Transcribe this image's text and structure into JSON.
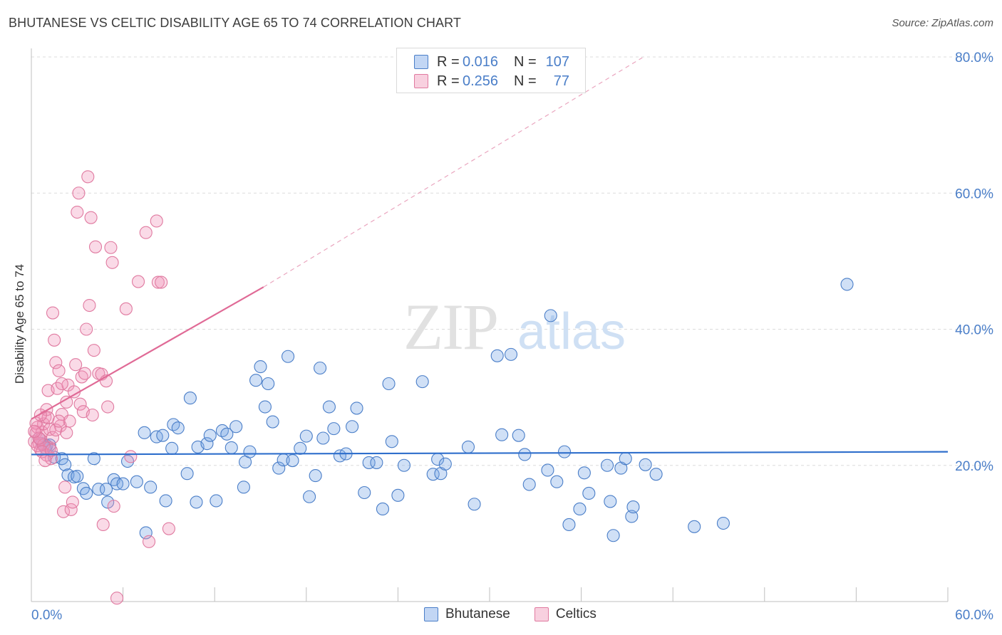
{
  "chart_data": {
    "type": "scatter",
    "title": "BHUTANESE VS CELTIC DISABILITY AGE 65 TO 74 CORRELATION CHART",
    "source": "Source: ZipAtlas.com",
    "xlabel": "",
    "ylabel": "Disability Age 65 to 74",
    "xlim": [
      0,
      60
    ],
    "ylim": [
      0,
      80
    ],
    "x_tick_labels": [
      "0.0%",
      "60.0%"
    ],
    "y_tick_labels": [
      "20.0%",
      "40.0%",
      "60.0%",
      "80.0%"
    ],
    "y_tick_values": [
      20,
      40,
      60,
      80
    ],
    "watermark": {
      "zip": "ZIP",
      "atlas": "atlas"
    },
    "legend": {
      "entries": [
        {
          "r_label": "R =",
          "r_value": "0.016",
          "n_label": "N =",
          "n_value": "107"
        },
        {
          "r_label": "R =",
          "r_value": "0.256",
          "n_label": "N =",
          "n_value": "77"
        }
      ]
    },
    "series": [
      {
        "name": "Bhutanese",
        "color": "#4a7ec8",
        "fill": "rgba(120,165,230,0.35)",
        "trend": {
          "x0": 0,
          "y0": 21.6,
          "x1": 60,
          "y1": 22.0
        },
        "points": [
          [
            0.5,
            24.0
          ],
          [
            0.7,
            23.2
          ],
          [
            1.0,
            22.9
          ],
          [
            1.5,
            21.2
          ],
          [
            2.0,
            21.0
          ],
          [
            2.2,
            20.1
          ],
          [
            2.4,
            18.6
          ],
          [
            2.8,
            18.3
          ],
          [
            3.0,
            18.4
          ],
          [
            3.4,
            16.6
          ],
          [
            3.6,
            15.9
          ],
          [
            4.1,
            21.0
          ],
          [
            4.4,
            16.5
          ],
          [
            4.9,
            16.5
          ],
          [
            5.0,
            14.6
          ],
          [
            5.4,
            17.9
          ],
          [
            5.6,
            17.3
          ],
          [
            6.0,
            17.3
          ],
          [
            6.3,
            20.6
          ],
          [
            6.9,
            17.6
          ],
          [
            7.4,
            24.8
          ],
          [
            7.5,
            10.1
          ],
          [
            7.8,
            16.8
          ],
          [
            8.2,
            24.2
          ],
          [
            8.6,
            24.4
          ],
          [
            8.8,
            14.8
          ],
          [
            9.2,
            22.5
          ],
          [
            9.3,
            26.0
          ],
          [
            9.6,
            25.5
          ],
          [
            10.2,
            18.8
          ],
          [
            10.4,
            29.9
          ],
          [
            10.8,
            14.6
          ],
          [
            10.9,
            22.7
          ],
          [
            11.5,
            23.2
          ],
          [
            11.7,
            24.4
          ],
          [
            12.1,
            14.8
          ],
          [
            12.5,
            25.1
          ],
          [
            12.8,
            24.6
          ],
          [
            13.1,
            22.6
          ],
          [
            13.4,
            25.7
          ],
          [
            13.9,
            16.8
          ],
          [
            14.0,
            20.5
          ],
          [
            14.3,
            22.0
          ],
          [
            14.7,
            32.5
          ],
          [
            15.0,
            34.5
          ],
          [
            15.3,
            28.6
          ],
          [
            15.5,
            32.0
          ],
          [
            15.8,
            26.4
          ],
          [
            16.2,
            19.6
          ],
          [
            16.5,
            20.8
          ],
          [
            16.8,
            36.0
          ],
          [
            17.1,
            20.7
          ],
          [
            17.6,
            22.5
          ],
          [
            18.0,
            24.3
          ],
          [
            18.2,
            15.4
          ],
          [
            18.6,
            18.5
          ],
          [
            18.9,
            34.3
          ],
          [
            19.1,
            24.0
          ],
          [
            19.5,
            28.6
          ],
          [
            19.8,
            25.4
          ],
          [
            20.2,
            21.4
          ],
          [
            20.6,
            21.7
          ],
          [
            21.0,
            25.7
          ],
          [
            21.3,
            28.4
          ],
          [
            21.8,
            16.0
          ],
          [
            22.1,
            20.4
          ],
          [
            22.6,
            20.4
          ],
          [
            23.0,
            13.6
          ],
          [
            23.4,
            32.0
          ],
          [
            23.6,
            23.5
          ],
          [
            24.0,
            15.6
          ],
          [
            24.4,
            20.0
          ],
          [
            25.6,
            32.3
          ],
          [
            26.3,
            18.7
          ],
          [
            26.6,
            20.9
          ],
          [
            26.8,
            18.8
          ],
          [
            27.1,
            20.2
          ],
          [
            28.6,
            22.7
          ],
          [
            29.0,
            14.3
          ],
          [
            30.5,
            36.1
          ],
          [
            30.8,
            24.5
          ],
          [
            31.4,
            36.3
          ],
          [
            31.9,
            24.4
          ],
          [
            32.3,
            21.6
          ],
          [
            32.6,
            17.2
          ],
          [
            34.0,
            42.0
          ],
          [
            33.8,
            19.3
          ],
          [
            34.4,
            17.6
          ],
          [
            34.9,
            22.0
          ],
          [
            35.2,
            11.3
          ],
          [
            35.9,
            13.6
          ],
          [
            36.2,
            18.9
          ],
          [
            36.5,
            15.9
          ],
          [
            37.7,
            20.0
          ],
          [
            37.9,
            14.7
          ],
          [
            38.1,
            9.7
          ],
          [
            38.6,
            19.6
          ],
          [
            38.9,
            21.0
          ],
          [
            39.3,
            12.5
          ],
          [
            39.4,
            13.9
          ],
          [
            40.2,
            20.1
          ],
          [
            40.9,
            18.7
          ],
          [
            43.4,
            11.0
          ],
          [
            45.3,
            11.5
          ],
          [
            53.4,
            46.6
          ],
          [
            1.2,
            23.0
          ],
          [
            0.9,
            22.6
          ]
        ]
      },
      {
        "name": "Celtics",
        "color": "#e07aa0",
        "fill": "rgba(240,150,185,0.35)",
        "trend": {
          "x0": 0,
          "y0": 26.8,
          "x1": 15.2,
          "y1": 46.2
        },
        "trend_extension": {
          "x0": 15.2,
          "y0": 46.2,
          "x1": 40.0,
          "y1": 79.9
        },
        "points": [
          [
            0.2,
            23.5
          ],
          [
            0.3,
            24.8
          ],
          [
            0.4,
            25.6
          ],
          [
            0.5,
            23.2
          ],
          [
            0.6,
            22.3
          ],
          [
            0.7,
            24.9
          ],
          [
            0.8,
            26.1
          ],
          [
            0.9,
            27.1
          ],
          [
            1.0,
            28.2
          ],
          [
            1.1,
            31.0
          ],
          [
            1.2,
            22.6
          ],
          [
            1.3,
            21.0
          ],
          [
            1.4,
            42.4
          ],
          [
            1.5,
            38.4
          ],
          [
            1.6,
            35.1
          ],
          [
            1.7,
            31.3
          ],
          [
            1.8,
            33.9
          ],
          [
            1.9,
            25.8
          ],
          [
            2.0,
            27.5
          ],
          [
            2.1,
            13.2
          ],
          [
            2.2,
            16.8
          ],
          [
            2.3,
            29.3
          ],
          [
            2.4,
            31.8
          ],
          [
            2.5,
            26.5
          ],
          [
            2.6,
            13.5
          ],
          [
            2.7,
            14.6
          ],
          [
            2.8,
            30.8
          ],
          [
            2.9,
            34.8
          ],
          [
            3.0,
            57.2
          ],
          [
            3.1,
            60.0
          ],
          [
            3.2,
            29.0
          ],
          [
            3.3,
            33.0
          ],
          [
            3.4,
            27.9
          ],
          [
            3.5,
            33.5
          ],
          [
            3.6,
            40.0
          ],
          [
            3.7,
            62.4
          ],
          [
            3.8,
            43.5
          ],
          [
            3.9,
            56.4
          ],
          [
            4.0,
            27.4
          ],
          [
            4.1,
            36.9
          ],
          [
            4.2,
            52.1
          ],
          [
            4.4,
            33.5
          ],
          [
            4.6,
            33.4
          ],
          [
            4.7,
            11.3
          ],
          [
            4.9,
            32.4
          ],
          [
            5.0,
            28.6
          ],
          [
            5.2,
            52.0
          ],
          [
            5.3,
            49.8
          ],
          [
            5.4,
            14.0
          ],
          [
            5.6,
            0.5
          ],
          [
            6.2,
            43.0
          ],
          [
            6.5,
            21.3
          ],
          [
            7.0,
            47.0
          ],
          [
            7.5,
            54.2
          ],
          [
            7.7,
            8.8
          ],
          [
            8.2,
            55.9
          ],
          [
            8.3,
            46.9
          ],
          [
            8.5,
            46.9
          ],
          [
            9.0,
            10.7
          ],
          [
            0.4,
            22.9
          ],
          [
            0.6,
            23.8
          ],
          [
            0.8,
            23.0
          ],
          [
            1.0,
            21.5
          ],
          [
            1.2,
            25.3
          ],
          [
            1.4,
            24.1
          ],
          [
            0.3,
            26.2
          ],
          [
            0.5,
            24.0
          ],
          [
            0.7,
            22.0
          ],
          [
            1.6,
            25.2
          ],
          [
            2.0,
            32.0
          ],
          [
            2.3,
            24.8
          ],
          [
            0.9,
            20.7
          ],
          [
            1.1,
            27.0
          ],
          [
            1.8,
            26.5
          ],
          [
            0.2,
            25.0
          ],
          [
            0.6,
            27.4
          ],
          [
            1.3,
            22.2
          ]
        ]
      }
    ]
  }
}
